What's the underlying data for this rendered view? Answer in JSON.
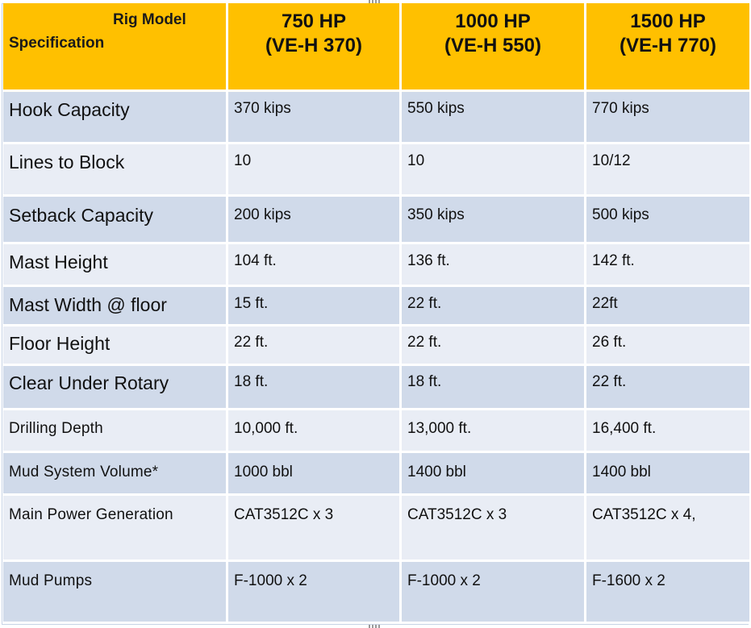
{
  "header": {
    "rig_model_label": "Rig Model",
    "specification_label": "Specification",
    "columns": [
      {
        "hp": "750 HP",
        "model": "(VE-H 370)"
      },
      {
        "hp": "1000 HP",
        "model": "(VE-H 550)"
      },
      {
        "hp": "1500 HP",
        "model": "(VE-H 770)"
      }
    ]
  },
  "rows": [
    {
      "label": "Hook Capacity",
      "values": [
        "370 kips",
        "550 kips",
        "770 kips"
      ]
    },
    {
      "label": "Lines to Block",
      "values": [
        "10",
        "10",
        "10/12"
      ]
    },
    {
      "label": "Setback Capacity",
      "values": [
        "200 kips",
        "350 kips",
        "500 kips"
      ]
    },
    {
      "label": "Mast Height",
      "values": [
        "104 ft.",
        "136 ft.",
        "142 ft."
      ]
    },
    {
      "label": "Mast Width @ floor",
      "values": [
        "15 ft.",
        "22 ft.",
        "22ft"
      ]
    },
    {
      "label": "Floor Height",
      "values": [
        "22 ft.",
        "22 ft.",
        "26 ft."
      ]
    },
    {
      "label": "Clear Under Rotary",
      "values": [
        "18 ft.",
        "18 ft.",
        "22 ft."
      ]
    },
    {
      "label": "Drilling Depth",
      "values": [
        "10,000 ft.",
        "13,000 ft.",
        "16,400 ft."
      ]
    },
    {
      "label": "Mud System Volume*",
      "values": [
        "1000 bbl",
        "1400 bbl",
        "1400 bbl"
      ]
    },
    {
      "label": "Main Power Generation",
      "values": [
        "CAT3512C x 3",
        "CAT3512C x 3",
        "CAT3512C x 4,"
      ]
    },
    {
      "label": "Mud Pumps",
      "values": [
        "F-1000 x 2",
        "F-1000 x 2",
        "F-1600 x 2"
      ]
    }
  ],
  "colors": {
    "header_bg": "#ffc000",
    "row_odd_bg": "#d0daea",
    "row_even_bg": "#e9edf5"
  }
}
